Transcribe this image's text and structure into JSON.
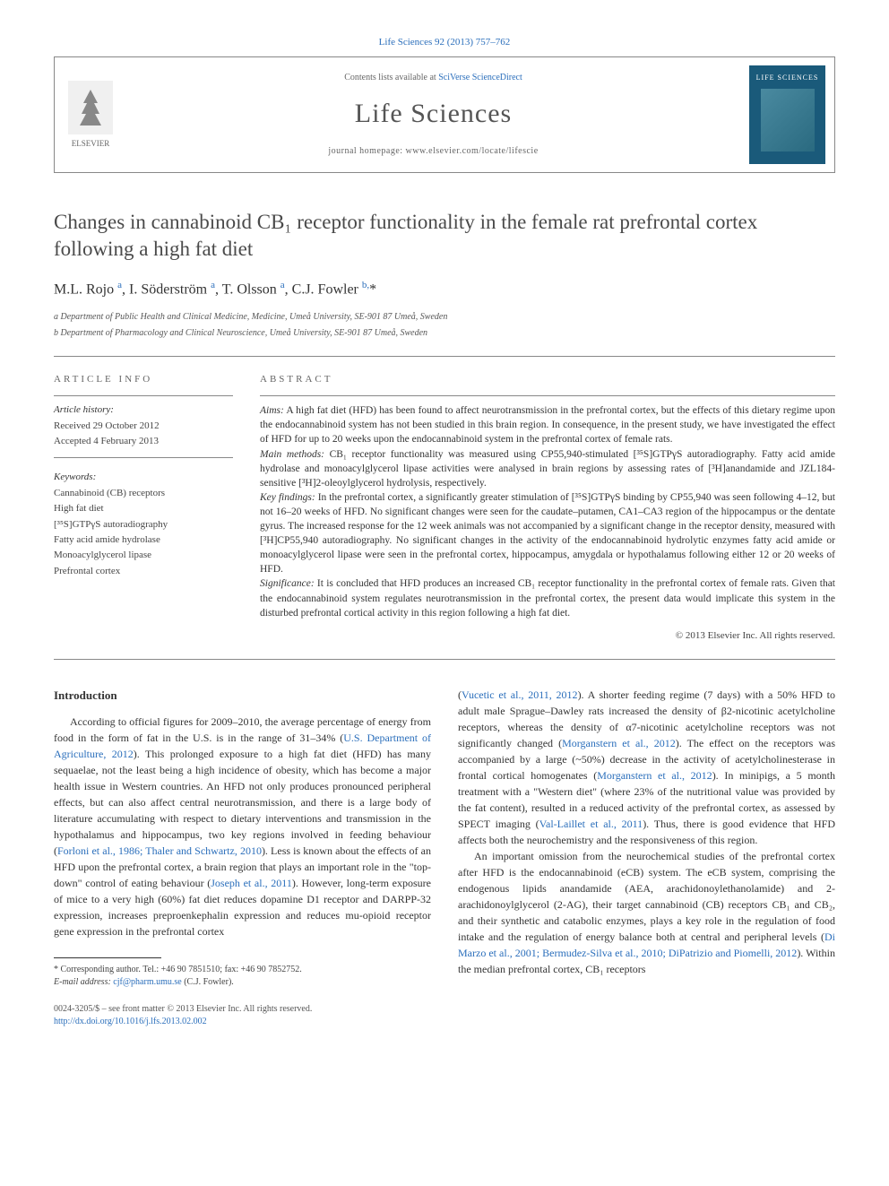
{
  "top_link": "Life Sciences 92 (2013) 757–762",
  "header": {
    "contents_prefix": "Contents lists available at ",
    "contents_link": "SciVerse ScienceDirect",
    "journal_name": "Life Sciences",
    "homepage_label": "journal homepage: www.elsevier.com/locate/lifescie",
    "elsevier_label": "ELSEVIER",
    "cover_label": "LIFE SCIENCES"
  },
  "title": "Changes in cannabinoid CB₁ receptor functionality in the female rat prefrontal cortex following a high fat diet",
  "authors_html": "M.L. Rojo <sup>a</sup>, I. Söderström <sup>a</sup>, T. Olsson <sup>a</sup>, C.J. Fowler <sup>b,</sup>*",
  "affiliations": [
    "a Department of Public Health and Clinical Medicine, Medicine, Umeå University, SE-901 87 Umeå, Sweden",
    "b Department of Pharmacology and Clinical Neuroscience, Umeå University, SE-901 87 Umeå, Sweden"
  ],
  "article_info": {
    "heading": "article info",
    "history_label": "Article history:",
    "received": "Received 29 October 2012",
    "accepted": "Accepted 4 February 2013",
    "keywords_label": "Keywords:",
    "keywords": [
      "Cannabinoid (CB) receptors",
      "High fat diet",
      "[³⁵S]GTPγS autoradiography",
      "Fatty acid amide hydrolase",
      "Monoacylglycerol lipase",
      "Prefrontal cortex"
    ]
  },
  "abstract": {
    "heading": "abstract",
    "aims_label": "Aims:",
    "aims": " A high fat diet (HFD) has been found to affect neurotransmission in the prefrontal cortex, but the effects of this dietary regime upon the endocannabinoid system has not been studied in this brain region. In consequence, in the present study, we have investigated the effect of HFD for up to 20 weeks upon the endocannabinoid system in the prefrontal cortex of female rats.",
    "methods_label": "Main methods:",
    "methods": " CB₁ receptor functionality was measured using CP55,940-stimulated [³⁵S]GTPγS autoradiography. Fatty acid amide hydrolase and monoacylglycerol lipase activities were analysed in brain regions by assessing rates of [³H]anandamide and JZL184-sensitive [³H]2-oleoylglycerol hydrolysis, respectively.",
    "findings_label": "Key findings:",
    "findings": " In the prefrontal cortex, a significantly greater stimulation of [³⁵S]GTPγS binding by CP55,940 was seen following 4–12, but not 16–20 weeks of HFD. No significant changes were seen for the caudate–putamen, CA1–CA3 region of the hippocampus or the dentate gyrus. The increased response for the 12 week animals was not accompanied by a significant change in the receptor density, measured with [³H]CP55,940 autoradiography. No significant changes in the activity of the endocannabinoid hydrolytic enzymes fatty acid amide or monoacylglycerol lipase were seen in the prefrontal cortex, hippocampus, amygdala or hypothalamus following either 12 or 20 weeks of HFD.",
    "significance_label": "Significance:",
    "significance": " It is concluded that HFD produces an increased CB₁ receptor functionality in the prefrontal cortex of female rats. Given that the endocannabinoid system regulates neurotransmission in the prefrontal cortex, the present data would implicate this system in the disturbed prefrontal cortical activity in this region following a high fat diet.",
    "copyright": "© 2013 Elsevier Inc. All rights reserved."
  },
  "intro": {
    "heading": "Introduction",
    "col1_p1_a": "According to official figures for 2009–2010, the average percentage of energy from food in the form of fat in the U.S. is in the range of 31–34% (",
    "col1_p1_link1": "U.S. Department of Agriculture, 2012",
    "col1_p1_b": "). This prolonged exposure to a high fat diet (HFD) has many sequaelae, not the least being a high incidence of obesity, which has become a major health issue in Western countries. An HFD not only produces pronounced peripheral effects, but can also affect central neurotransmission, and there is a large body of literature accumulating with respect to dietary interventions and transmission in the hypothalamus and hippocampus, two key regions involved in feeding behaviour (",
    "col1_p1_link2": "Forloni et al., 1986; Thaler and Schwartz, 2010",
    "col1_p1_c": "). Less is known about the effects of an HFD upon the prefrontal cortex, a brain region that plays an important role in the \"top-down\" control of eating behaviour (",
    "col1_p1_link3": "Joseph et al., 2011",
    "col1_p1_d": "). However, long-term exposure of mice to a very high (60%) fat diet reduces dopamine D1 receptor and DARPP-32 expression, increases preproenkephalin expression and reduces mu-opioid receptor gene expression in the prefrontal cortex",
    "col2_p1_a": "(",
    "col2_p1_link1": "Vucetic et al., 2011, 2012",
    "col2_p1_b": "). A shorter feeding regime (7 days) with a 50% HFD to adult male Sprague–Dawley rats increased the density of β2-nicotinic acetylcholine receptors, whereas the density of α7-nicotinic acetylcholine receptors was not significantly changed (",
    "col2_p1_link2": "Morganstern et al., 2012",
    "col2_p1_c": "). The effect on the receptors was accompanied by a large (~50%) decrease in the activity of acetylcholinesterase in frontal cortical homogenates (",
    "col2_p1_link3": "Morganstern et al., 2012",
    "col2_p1_d": "). In minipigs, a 5 month treatment with a \"Western diet\" (where 23% of the nutritional value was provided by the fat content), resulted in a reduced activity of the prefrontal cortex, as assessed by SPECT imaging (",
    "col2_p1_link4": "Val-Laillet et al., 2011",
    "col2_p1_e": "). Thus, there is good evidence that HFD affects both the neurochemistry and the responsiveness of this region.",
    "col2_p2_a": "An important omission from the neurochemical studies of the prefrontal cortex after HFD is the endocannabinoid (eCB) system. The eCB system, comprising the endogenous lipids anandamide (AEA, arachidonoylethanolamide) and 2-arachidonoylglycerol (2-AG), their target cannabinoid (CB) receptors CB₁ and CB₂, and their synthetic and catabolic enzymes, plays a key role in the regulation of food intake and the regulation of energy balance both at central and peripheral levels (",
    "col2_p2_link1": "Di Marzo et al., 2001; Bermudez-Silva et al., 2010; DiPatrizio and Piomelli, 2012",
    "col2_p2_b": "). Within the median prefrontal cortex, CB₁ receptors"
  },
  "footnote": {
    "corr": "* Corresponding author. Tel.: +46 90 7851510; fax: +46 90 7852752.",
    "email_label": "E-mail address: ",
    "email": "cjf@pharm.umu.se",
    "email_suffix": " (C.J. Fowler)."
  },
  "bottom": {
    "issn": "0024-3205/$ – see front matter © 2013 Elsevier Inc. All rights reserved.",
    "doi": "http://dx.doi.org/10.1016/j.lfs.2013.02.002"
  }
}
